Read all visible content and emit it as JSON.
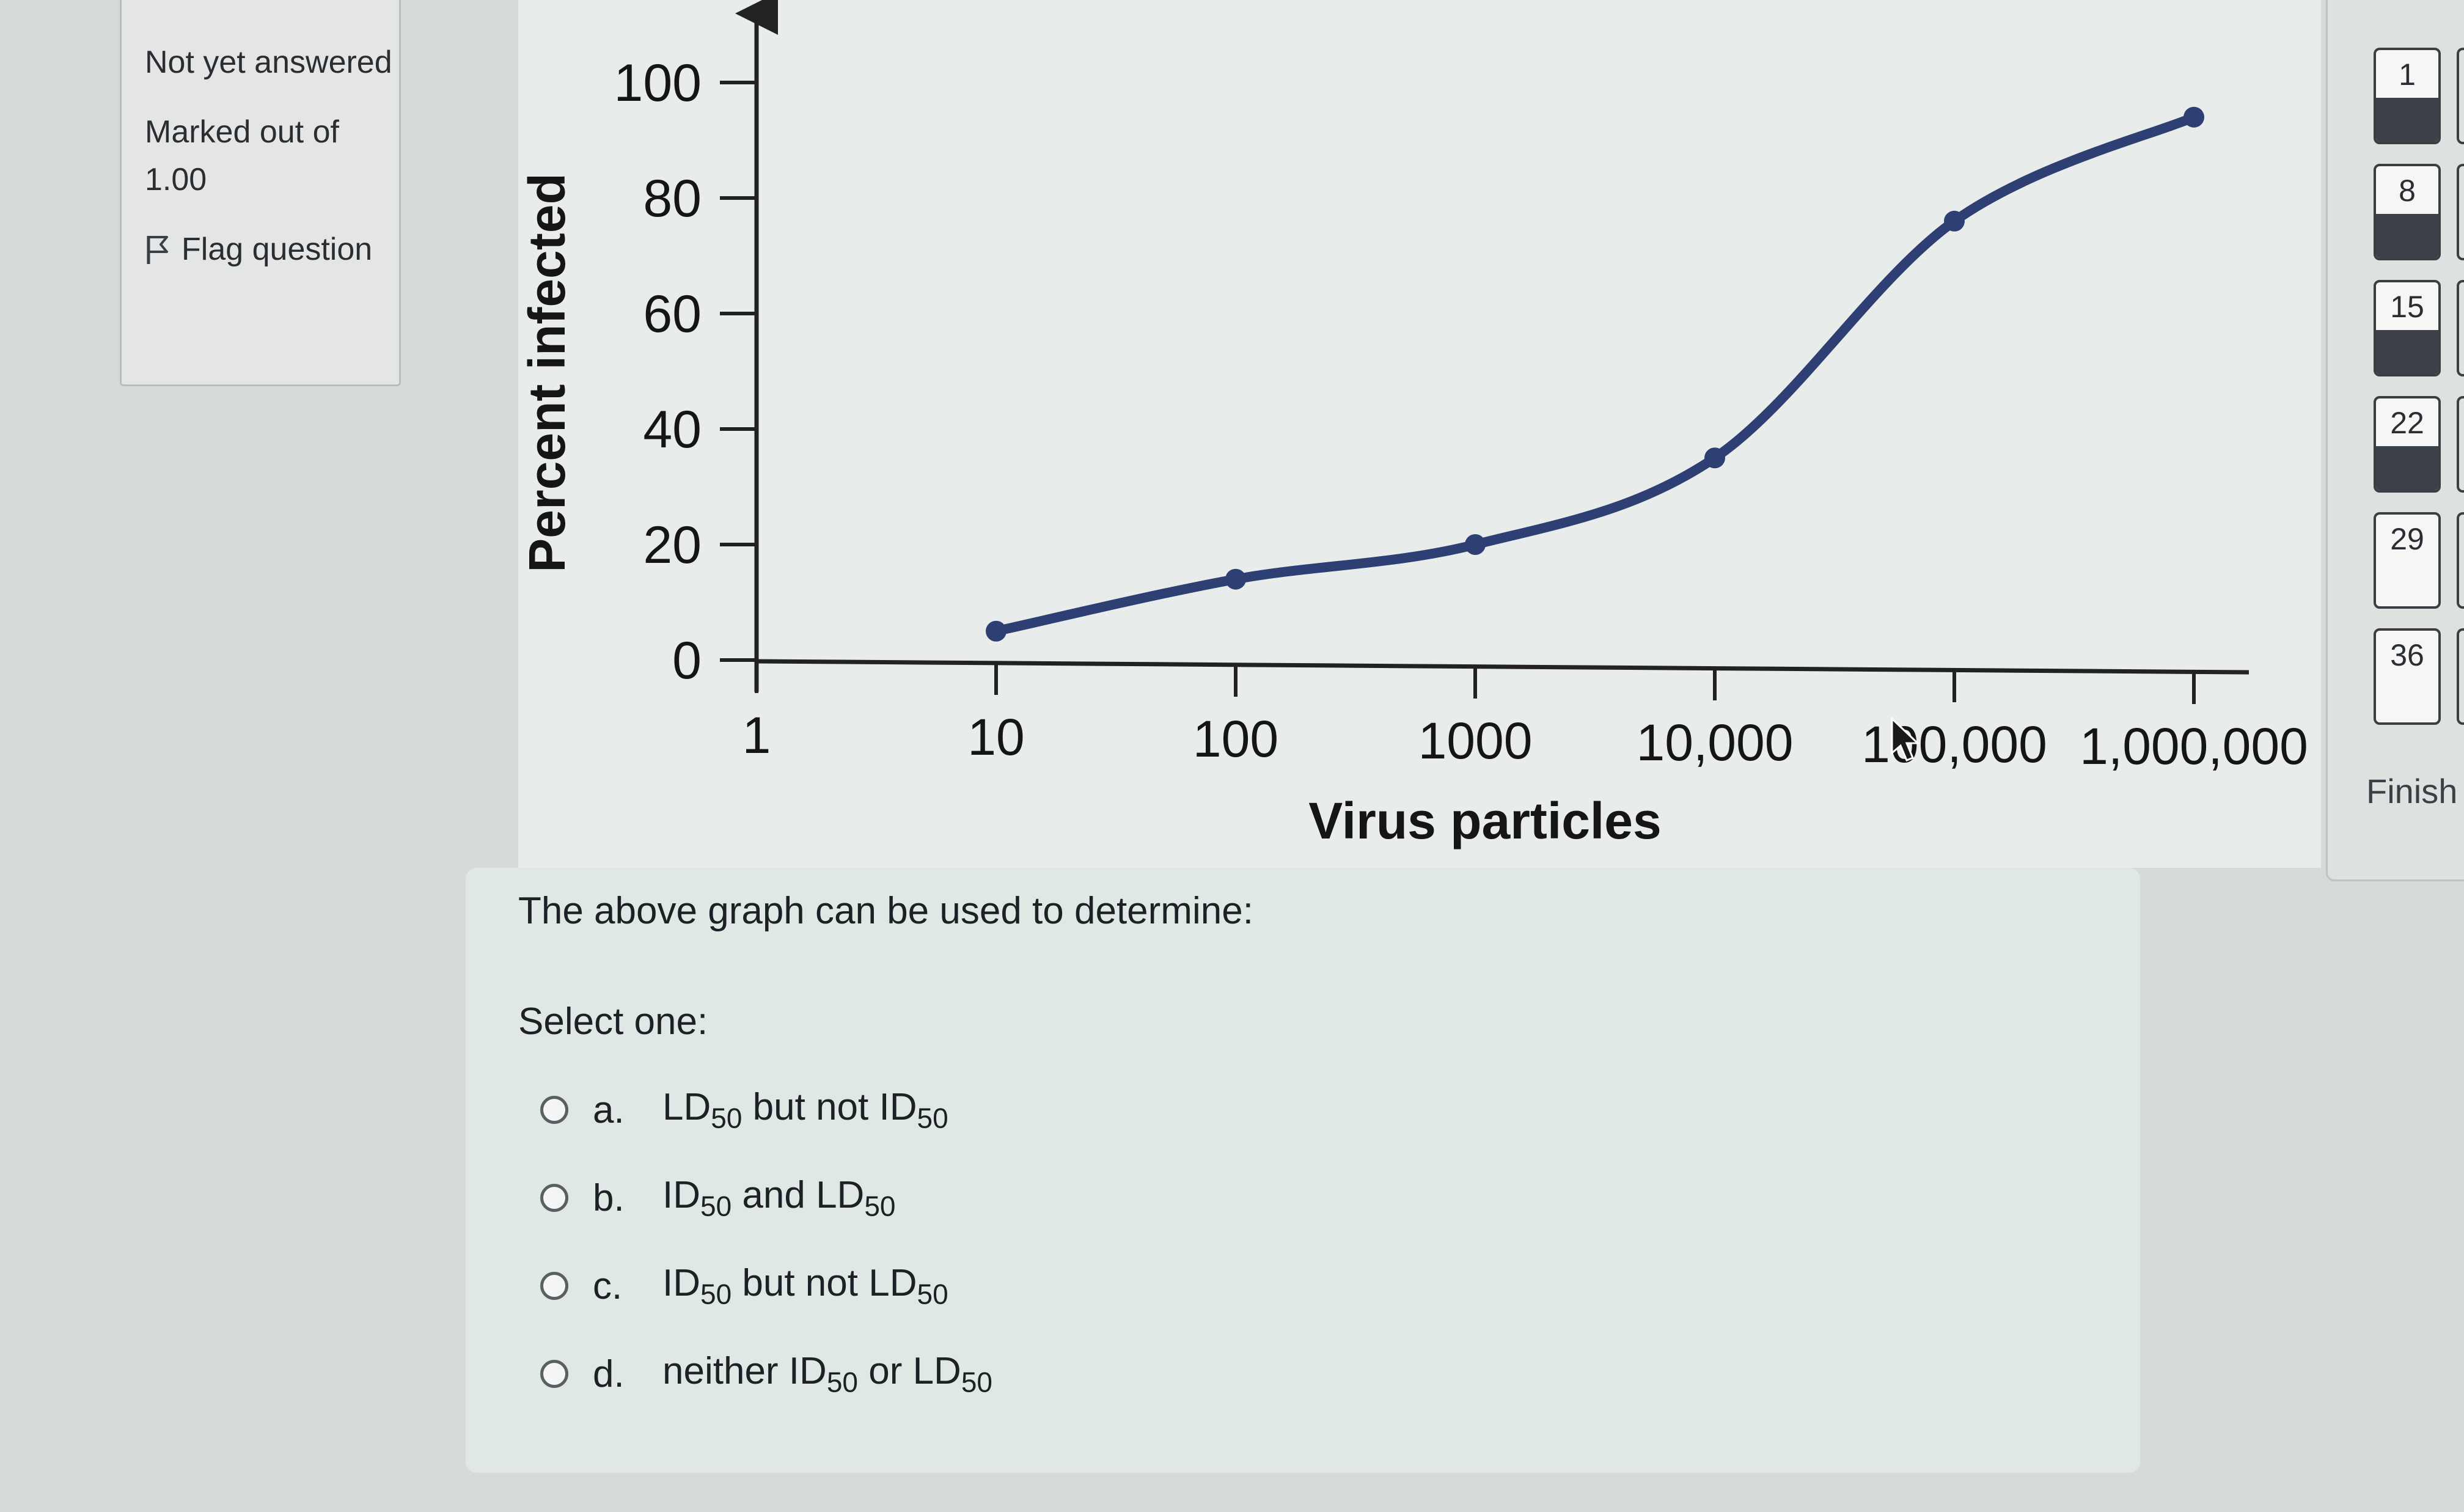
{
  "question_info": {
    "status": "Not yet answered",
    "marks": "Marked out of 1.00",
    "flag_label": "Flag question"
  },
  "chart_data": {
    "type": "line",
    "xlabel": "Virus particles",
    "ylabel": "Percent infected",
    "x_scale": "log",
    "x_ticks": [
      "1",
      "10",
      "100",
      "1000",
      "10,000",
      "100,000",
      "1,000,000"
    ],
    "y_ticks": [
      "0",
      "20",
      "40",
      "60",
      "80",
      "100"
    ],
    "ylim": [
      0,
      100
    ],
    "series": [
      {
        "x": [
          10,
          100,
          1000,
          10000,
          100000,
          1000000
        ],
        "y": [
          5,
          14,
          20,
          35,
          76,
          94
        ],
        "color": "#2d3f73"
      }
    ]
  },
  "question": {
    "prompt": "The above graph can be used to determine:",
    "select_label": "Select one:",
    "options": [
      {
        "letter": "a.",
        "text": "LD50 but not ID50"
      },
      {
        "letter": "b.",
        "text": "ID50 and LD50"
      },
      {
        "letter": "c.",
        "text": "ID50 but not LD50"
      },
      {
        "letter": "d.",
        "text": "neither ID50 or LD50"
      }
    ]
  },
  "navigation": {
    "buttons": [
      {
        "label": "1",
        "answered": true
      },
      {
        "label": "8",
        "answered": true
      },
      {
        "label": "15",
        "answered": true
      },
      {
        "label": "22",
        "answered": true
      },
      {
        "label": "29",
        "answered": false
      },
      {
        "label": "36",
        "answered": false
      }
    ],
    "finish_label": "Finish"
  }
}
